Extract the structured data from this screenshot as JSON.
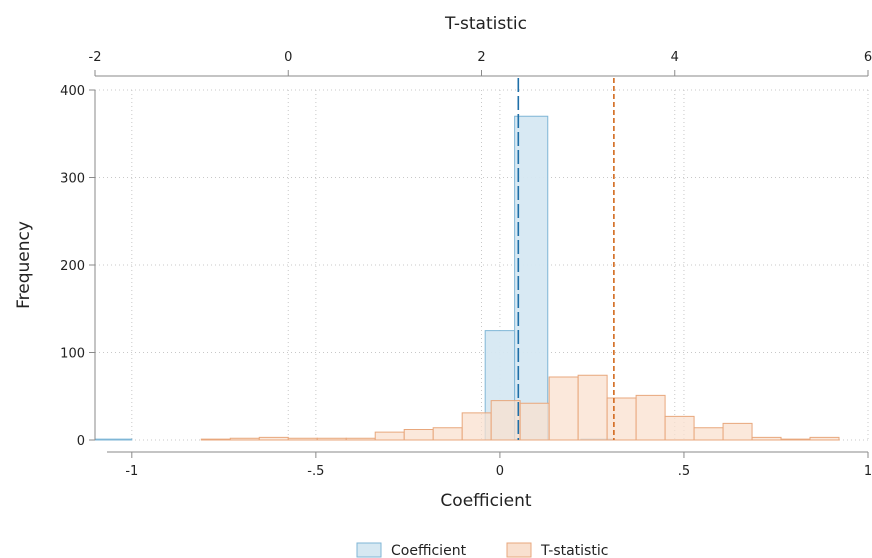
{
  "chart_data": {
    "type": "histogram",
    "xlabel": "Coefficient",
    "ylabel": "Frequency",
    "x2label": "T-statistic",
    "xlim": [
      -1.1,
      1
    ],
    "x_ticks": [
      -1,
      -0.5,
      0,
      0.5,
      1
    ],
    "x_tick_labels": [
      "-1",
      "-.5",
      "0",
      ".5",
      "1"
    ],
    "x2lim": [
      -2,
      6
    ],
    "x2_ticks": [
      -2,
      0,
      2,
      4,
      6
    ],
    "x2_tick_labels": [
      "-2",
      "0",
      "2",
      "4",
      "6"
    ],
    "ylim": [
      0,
      400
    ],
    "y_ticks": [
      0,
      100,
      200,
      300,
      400
    ],
    "y_tick_labels": [
      "0",
      "100",
      "200",
      "300",
      "400"
    ],
    "grid": true,
    "legend_position": "bottom",
    "series": [
      {
        "name": "Coefficient",
        "axis": "bottom",
        "fill": "#d6e8f2",
        "stroke": "#7fb6d6",
        "bins": [
          {
            "x0": -1.1,
            "x1": -1.0,
            "count": 1
          },
          {
            "x0": -0.04,
            "x1": 0.04,
            "count": 125
          },
          {
            "x0": 0.04,
            "x1": 0.13,
            "count": 370
          },
          {
            "x0": 0.22,
            "x1": 0.31,
            "count": 1
          }
        ],
        "mean": 0.05,
        "mean_color": "#1f6fa8"
      },
      {
        "name": "T-statistic",
        "axis": "top",
        "fill": "#f9e0cf",
        "stroke": "#e8a77c",
        "bins": [
          {
            "x0": -0.9,
            "x1": -0.6,
            "count": 1
          },
          {
            "x0": -0.6,
            "x1": -0.3,
            "count": 2
          },
          {
            "x0": -0.3,
            "x1": 0.0,
            "count": 3
          },
          {
            "x0": 0.0,
            "x1": 0.3,
            "count": 2
          },
          {
            "x0": 0.3,
            "x1": 0.6,
            "count": 2
          },
          {
            "x0": 0.6,
            "x1": 0.9,
            "count": 2
          },
          {
            "x0": 0.9,
            "x1": 1.2,
            "count": 9
          },
          {
            "x0": 1.2,
            "x1": 1.5,
            "count": 12
          },
          {
            "x0": 1.5,
            "x1": 1.8,
            "count": 14
          },
          {
            "x0": 1.8,
            "x1": 2.1,
            "count": 31
          },
          {
            "x0": 2.1,
            "x1": 2.4,
            "count": 45
          },
          {
            "x0": 2.4,
            "x1": 2.7,
            "count": 42
          },
          {
            "x0": 2.7,
            "x1": 3.0,
            "count": 72
          },
          {
            "x0": 3.0,
            "x1": 3.3,
            "count": 74
          },
          {
            "x0": 3.3,
            "x1": 3.6,
            "count": 48
          },
          {
            "x0": 3.6,
            "x1": 3.9,
            "count": 51
          },
          {
            "x0": 3.9,
            "x1": 4.2,
            "count": 27
          },
          {
            "x0": 4.2,
            "x1": 4.5,
            "count": 14
          },
          {
            "x0": 4.5,
            "x1": 4.8,
            "count": 19
          },
          {
            "x0": 4.8,
            "x1": 5.1,
            "count": 3
          },
          {
            "x0": 5.1,
            "x1": 5.4,
            "count": 1
          },
          {
            "x0": 5.4,
            "x1": 5.7,
            "count": 3
          }
        ],
        "mean": 3.37,
        "mean_color": "#d2691e"
      }
    ]
  }
}
